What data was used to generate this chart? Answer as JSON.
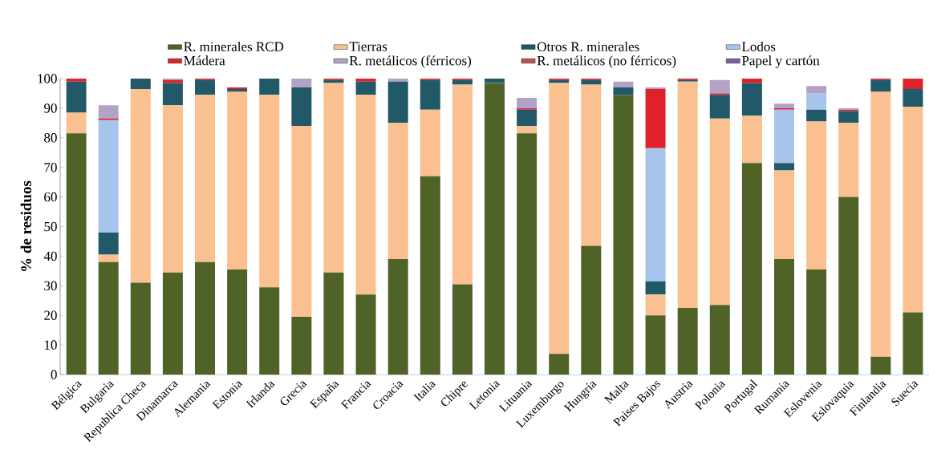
{
  "chart_data": {
    "type": "bar",
    "stacked": true,
    "ylabel": "% de residuos",
    "legend": "top",
    "ylim": [
      0,
      100
    ],
    "yticks": [
      0,
      10,
      20,
      30,
      40,
      50,
      60,
      70,
      80,
      90,
      100
    ],
    "categories": [
      "Bélgica",
      "Bulgaria",
      "Republica Checa",
      "Dinamarca",
      "Alemania",
      "Estonia",
      "Irlanda",
      "Grecia",
      "España",
      "Francia",
      "Croacia",
      "Italia",
      "Chipre",
      "Letonia",
      "Lituania",
      "Luxemburgo",
      "Hungría",
      "Malta",
      "Paises Bajos",
      "Austria",
      "Polonia",
      "Portugal",
      "Rumania",
      "Eslovenia",
      "Eslovaquia",
      "Finlandia",
      "Suecia"
    ],
    "series": [
      {
        "name": "R. minerales RCD",
        "color": "#4f6228",
        "values": [
          81.5,
          38,
          31,
          34.5,
          38,
          35.5,
          29.5,
          19.5,
          34.5,
          27,
          39,
          67,
          30.5,
          98.5,
          81.5,
          7,
          43.5,
          94.5,
          20,
          22.5,
          23.5,
          71.5,
          39,
          35.5,
          60,
          6,
          21
        ]
      },
      {
        "name": "Tierras",
        "color": "#fac090",
        "values": [
          7,
          2.5,
          65.5,
          56.5,
          56.5,
          60,
          65,
          64.5,
          64,
          67.5,
          46,
          22.5,
          67.5,
          0,
          2.5,
          91.5,
          54.5,
          0,
          7,
          76.5,
          63,
          16,
          30,
          50,
          25,
          89.5,
          69.5
        ]
      },
      {
        "name": "Otros R. minerales",
        "color": "#215968",
        "values": [
          10.5,
          7.5,
          3.5,
          7.5,
          5,
          1,
          5.5,
          13,
          1,
          4.5,
          14,
          10,
          1.5,
          1.5,
          5.5,
          1,
          1.5,
          2.5,
          4.5,
          0.5,
          8,
          11,
          2.5,
          4,
          4,
          4,
          6
        ]
      },
      {
        "name": "Lodos",
        "color": "#a6c4ec",
        "values": [
          0,
          38,
          0,
          0,
          0,
          0,
          0,
          0,
          0,
          0,
          0,
          0,
          0,
          0,
          0,
          0,
          0,
          0,
          45,
          0,
          0,
          0,
          18,
          5.5,
          0,
          0,
          0
        ]
      },
      {
        "name": "Mádera",
        "color": "#e0202a",
        "values": [
          1,
          0.5,
          0,
          1,
          0.5,
          0.5,
          0,
          0,
          0.5,
          1,
          0,
          0.5,
          0.5,
          0,
          0.5,
          0.5,
          0.5,
          0,
          20,
          0.5,
          0.5,
          1.5,
          0.5,
          0,
          0.5,
          0.5,
          3.5
        ]
      },
      {
        "name": "R. metálicos (férricos)",
        "color": "#b3a2c7",
        "values": [
          0,
          4.5,
          0,
          0.5,
          0,
          0,
          0,
          3,
          0,
          0,
          1,
          0,
          0,
          0,
          3.5,
          0,
          0,
          2,
          0.5,
          0,
          4.5,
          0,
          1.5,
          2.5,
          0.5,
          0,
          0
        ]
      },
      {
        "name": "R. metálicos (no férricos)",
        "color": "#c0504d",
        "values": [
          0,
          0,
          0,
          0,
          0,
          0,
          0,
          0,
          0,
          0,
          0,
          0,
          0,
          0,
          0,
          0,
          0,
          0,
          0,
          0,
          0,
          0,
          0,
          0,
          0,
          0,
          0
        ]
      },
      {
        "name": "Papel y cartón",
        "color": "#7f5f9f",
        "values": [
          0,
          0,
          0,
          0,
          0,
          0,
          0,
          0,
          0,
          0,
          0,
          0,
          0,
          0,
          0,
          0,
          0,
          0,
          0,
          0,
          0,
          0,
          0,
          0,
          0,
          0,
          0
        ]
      }
    ]
  }
}
